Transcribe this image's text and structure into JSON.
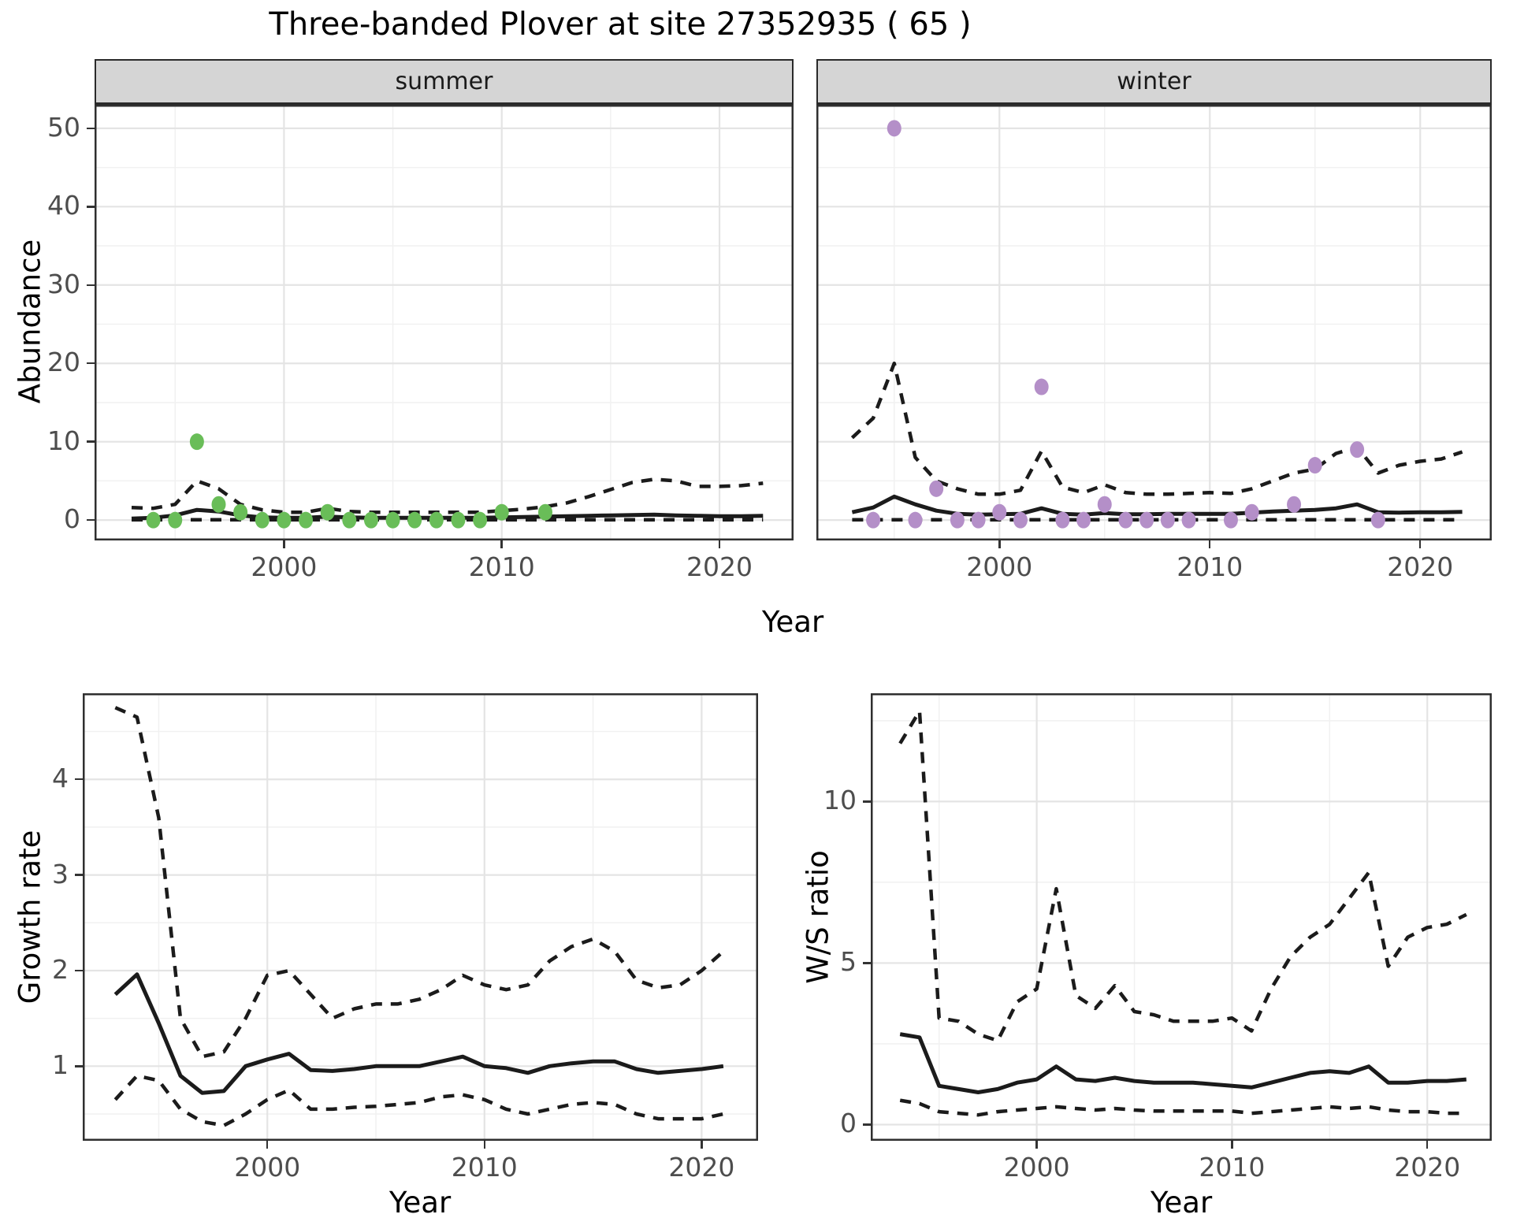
{
  "title": "Three-banded Plover at site 27352935 ( 65 )",
  "axes": {
    "top_y_label": "Abundance",
    "top_x_label": "Year",
    "bottom_left_y_label": "Growth rate",
    "bottom_right_y_label": "W/S ratio",
    "bottom_left_x_label": "Year",
    "bottom_right_x_label": "Year"
  },
  "facets": [
    {
      "label": "summer"
    },
    {
      "label": "winter"
    }
  ],
  "colors": {
    "summer_point": "#69BD58",
    "winter_point": "#B48FC8",
    "line": "#1B1B1B",
    "strip_bg": "#D5D5D5",
    "grid_major": "#E4E4E4",
    "grid_minor": "#F1F1F1",
    "panel_border": "#2F2F2F",
    "tick_text": "#4D4D4D"
  },
  "chart_data": [
    {
      "id": "abundance-summer",
      "type": "line",
      "facet": "summer",
      "title": "",
      "xlabel": "Year",
      "ylabel": "Abundance",
      "x_range": [
        1991.3,
        2023.4
      ],
      "y_range": [
        -2.6,
        53
      ],
      "x_ticks": [
        2000,
        2010,
        2020
      ],
      "x_tick_labels": [
        "2000",
        "2010",
        "2020"
      ],
      "x_minor": [
        1995,
        2005,
        2015
      ],
      "y_ticks": [
        0,
        10,
        20,
        30,
        40,
        50
      ],
      "y_tick_labels": [
        "0",
        "10",
        "20",
        "30",
        "40",
        "50"
      ],
      "y_minor": [
        5,
        15,
        25,
        35,
        45
      ],
      "show_y_tick_labels": true,
      "series": [
        {
          "name": "lower-ci",
          "style": "dashed",
          "x": [
            1993,
            1994,
            1995,
            1996,
            1997,
            1998,
            1999,
            2000,
            2001,
            2002,
            2003,
            2004,
            2005,
            2006,
            2007,
            2008,
            2009,
            2010,
            2011,
            2012,
            2013,
            2014,
            2015,
            2016,
            2017,
            2018,
            2019,
            2020,
            2021,
            2022
          ],
          "y": [
            0.03,
            0.03,
            0.03,
            0.03,
            0.03,
            0.03,
            0.03,
            0.03,
            0.03,
            0.03,
            0.03,
            0.03,
            0.03,
            0.03,
            0.03,
            0.03,
            0.03,
            0.03,
            0.03,
            0.03,
            0.03,
            0.03,
            0.03,
            0.03,
            0.03,
            0.03,
            0.03,
            0.03,
            0.03,
            0.03
          ]
        },
        {
          "name": "upper-ci",
          "style": "dashed",
          "x": [
            1993,
            1994,
            1995,
            1996,
            1997,
            1998,
            1999,
            2000,
            2001,
            2002,
            2003,
            2004,
            2005,
            2006,
            2007,
            2008,
            2009,
            2010,
            2011,
            2012,
            2013,
            2014,
            2015,
            2016,
            2017,
            2018,
            2019,
            2020,
            2021,
            2022
          ],
          "y": [
            1.6,
            1.5,
            2.0,
            5.0,
            4.0,
            2.0,
            1.3,
            1.0,
            1.0,
            1.5,
            1.1,
            1.0,
            1.0,
            1.0,
            1.0,
            1.0,
            1.0,
            1.2,
            1.4,
            1.7,
            2.2,
            3.0,
            3.9,
            4.8,
            5.2,
            5.0,
            4.3,
            4.3,
            4.4,
            4.7
          ]
        },
        {
          "name": "median",
          "style": "solid",
          "x": [
            1993,
            1994,
            1995,
            1996,
            1997,
            1998,
            1999,
            2000,
            2001,
            2002,
            2003,
            2004,
            2005,
            2006,
            2007,
            2008,
            2009,
            2010,
            2011,
            2012,
            2013,
            2014,
            2015,
            2016,
            2017,
            2018,
            2019,
            2020,
            2021,
            2022
          ],
          "y": [
            0.2,
            0.3,
            0.6,
            1.3,
            1.1,
            0.6,
            0.35,
            0.3,
            0.3,
            0.45,
            0.35,
            0.3,
            0.3,
            0.3,
            0.3,
            0.3,
            0.3,
            0.35,
            0.4,
            0.45,
            0.5,
            0.55,
            0.6,
            0.65,
            0.7,
            0.6,
            0.55,
            0.5,
            0.5,
            0.55
          ]
        },
        {
          "name": "observations",
          "style": "points",
          "color": "#69BD58",
          "x": [
            1994,
            1995,
            1996,
            1997,
            1998,
            1999,
            2000,
            2001,
            2002,
            2003,
            2004,
            2005,
            2006,
            2007,
            2008,
            2009,
            2010,
            2012
          ],
          "y": [
            0,
            0,
            10,
            2,
            1,
            0,
            0,
            0,
            1,
            0,
            0,
            0,
            0,
            0,
            0,
            0,
            1,
            1
          ]
        }
      ]
    },
    {
      "id": "abundance-winter",
      "type": "line",
      "facet": "winter",
      "title": "",
      "xlabel": "Year",
      "ylabel": "Abundance",
      "x_range": [
        1991.3,
        2023.4
      ],
      "y_range": [
        -2.6,
        53
      ],
      "x_ticks": [
        2000,
        2010,
        2020
      ],
      "x_tick_labels": [
        "2000",
        "2010",
        "2020"
      ],
      "x_minor": [
        1995,
        2005,
        2015
      ],
      "y_ticks": [
        0,
        10,
        20,
        30,
        40,
        50
      ],
      "y_tick_labels": [
        "0",
        "10",
        "20",
        "30",
        "40",
        "50"
      ],
      "y_minor": [
        5,
        15,
        25,
        35,
        45
      ],
      "show_y_tick_labels": false,
      "series": [
        {
          "name": "lower-ci",
          "style": "dashed",
          "x": [
            1993,
            1994,
            1995,
            1996,
            1997,
            1998,
            1999,
            2000,
            2001,
            2002,
            2003,
            2004,
            2005,
            2006,
            2007,
            2008,
            2009,
            2010,
            2011,
            2012,
            2013,
            2014,
            2015,
            2016,
            2017,
            2018,
            2019,
            2020,
            2021,
            2022
          ],
          "y": [
            0.03,
            0.03,
            0.03,
            0.03,
            0.03,
            0.03,
            0.03,
            0.03,
            0.03,
            0.03,
            0.03,
            0.03,
            0.03,
            0.03,
            0.03,
            0.03,
            0.03,
            0.03,
            0.03,
            0.03,
            0.03,
            0.03,
            0.03,
            0.03,
            0.03,
            0.03,
            0.03,
            0.03,
            0.03,
            0.03
          ]
        },
        {
          "name": "upper-ci",
          "style": "dashed",
          "x": [
            1993,
            1994,
            1995,
            1996,
            1997,
            1998,
            1999,
            2000,
            2001,
            2002,
            2003,
            2004,
            2005,
            2006,
            2007,
            2008,
            2009,
            2010,
            2011,
            2012,
            2013,
            2014,
            2015,
            2016,
            2017,
            2018,
            2019,
            2020,
            2021,
            2022
          ],
          "y": [
            10.5,
            13.0,
            20.0,
            8.0,
            5.0,
            4.0,
            3.3,
            3.3,
            3.8,
            8.8,
            4.2,
            3.5,
            4.5,
            3.5,
            3.3,
            3.3,
            3.4,
            3.5,
            3.4,
            4.0,
            5.0,
            6.0,
            6.5,
            8.5,
            9.3,
            6.0,
            7.0,
            7.5,
            7.8,
            8.7
          ]
        },
        {
          "name": "median",
          "style": "solid",
          "x": [
            1993,
            1994,
            1995,
            1996,
            1997,
            1998,
            1999,
            2000,
            2001,
            2002,
            2003,
            2004,
            2005,
            2006,
            2007,
            2008,
            2009,
            2010,
            2011,
            2012,
            2013,
            2014,
            2015,
            2016,
            2017,
            2018,
            2019,
            2020,
            2021,
            2022
          ],
          "y": [
            1.0,
            1.6,
            3.0,
            2.0,
            1.2,
            0.8,
            0.7,
            0.75,
            0.8,
            1.5,
            0.8,
            0.7,
            0.9,
            0.75,
            0.75,
            0.8,
            0.8,
            0.8,
            0.8,
            0.95,
            1.1,
            1.2,
            1.3,
            1.5,
            2.0,
            1.0,
            0.95,
            1.0,
            1.0,
            1.05
          ]
        },
        {
          "name": "observations",
          "style": "points",
          "color": "#B48FC8",
          "x": [
            1994,
            1995,
            1996,
            1997,
            1998,
            1999,
            2000,
            2001,
            2002,
            2003,
            2004,
            2005,
            2006,
            2007,
            2008,
            2009,
            2011,
            2012,
            2014,
            2015,
            2017,
            2018
          ],
          "y": [
            0,
            50,
            0,
            4,
            0,
            0,
            1,
            0,
            17,
            0,
            0,
            2,
            0,
            0,
            0,
            0,
            0,
            1,
            2,
            7,
            9,
            0
          ]
        }
      ]
    },
    {
      "id": "growth-rate",
      "type": "line",
      "facet": null,
      "title": "",
      "xlabel": "Year",
      "ylabel": "Growth rate",
      "x_range": [
        1991.5,
        2022.6
      ],
      "y_range": [
        0.22,
        4.9
      ],
      "x_ticks": [
        2000,
        2010,
        2020
      ],
      "x_tick_labels": [
        "2000",
        "2010",
        "2020"
      ],
      "x_minor": [
        1995,
        2005,
        2015
      ],
      "y_ticks": [
        1,
        2,
        3,
        4
      ],
      "y_tick_labels": [
        "1",
        "2",
        "3",
        "4"
      ],
      "y_minor": [
        0.5,
        1.5,
        2.5,
        3.5,
        4.5
      ],
      "show_y_tick_labels": true,
      "series": [
        {
          "name": "lower-ci",
          "style": "dashed",
          "x": [
            1993,
            1994,
            1995,
            1996,
            1997,
            1998,
            1999,
            2000,
            2001,
            2002,
            2003,
            2004,
            2005,
            2006,
            2007,
            2008,
            2009,
            2010,
            2011,
            2012,
            2013,
            2014,
            2015,
            2016,
            2017,
            2018,
            2019,
            2020,
            2021
          ],
          "y": [
            0.65,
            0.9,
            0.85,
            0.55,
            0.42,
            0.38,
            0.5,
            0.65,
            0.75,
            0.55,
            0.55,
            0.57,
            0.58,
            0.6,
            0.62,
            0.68,
            0.7,
            0.65,
            0.55,
            0.5,
            0.55,
            0.6,
            0.62,
            0.6,
            0.5,
            0.45,
            0.45,
            0.45,
            0.5
          ]
        },
        {
          "name": "upper-ci",
          "style": "dashed",
          "x": [
            1993,
            1994,
            1995,
            1996,
            1997,
            1998,
            1999,
            2000,
            2001,
            2002,
            2003,
            2004,
            2005,
            2006,
            2007,
            2008,
            2009,
            2010,
            2011,
            2012,
            2013,
            2014,
            2015,
            2016,
            2017,
            2018,
            2019,
            2020,
            2021
          ],
          "y": [
            4.75,
            4.65,
            3.6,
            1.5,
            1.1,
            1.15,
            1.5,
            1.95,
            2.0,
            1.75,
            1.5,
            1.6,
            1.65,
            1.65,
            1.7,
            1.8,
            1.95,
            1.85,
            1.8,
            1.85,
            2.1,
            2.25,
            2.33,
            2.2,
            1.9,
            1.82,
            1.85,
            2.0,
            2.2
          ]
        },
        {
          "name": "median",
          "style": "solid",
          "x": [
            1993,
            1994,
            1995,
            1996,
            1997,
            1998,
            1999,
            2000,
            2001,
            2002,
            2003,
            2004,
            2005,
            2006,
            2007,
            2008,
            2009,
            2010,
            2011,
            2012,
            2013,
            2014,
            2015,
            2016,
            2017,
            2018,
            2019,
            2020,
            2021
          ],
          "y": [
            1.75,
            1.96,
            1.45,
            0.9,
            0.72,
            0.74,
            1.0,
            1.07,
            1.13,
            0.96,
            0.95,
            0.97,
            1.0,
            1.0,
            1.0,
            1.05,
            1.1,
            1.0,
            0.98,
            0.93,
            1.0,
            1.03,
            1.05,
            1.05,
            0.97,
            0.93,
            0.95,
            0.97,
            1.0
          ]
        }
      ]
    },
    {
      "id": "ws-ratio",
      "type": "line",
      "facet": null,
      "title": "",
      "xlabel": "Year",
      "ylabel": "W/S ratio",
      "x_range": [
        1991.5,
        2023.3
      ],
      "y_range": [
        -0.5,
        13.35
      ],
      "x_ticks": [
        2000,
        2010,
        2020
      ],
      "x_tick_labels": [
        "2000",
        "2010",
        "2020"
      ],
      "x_minor": [
        1995,
        2005,
        2015
      ],
      "y_ticks": [
        0,
        5,
        10
      ],
      "y_tick_labels": [
        "0",
        "5",
        "10"
      ],
      "y_minor": [
        2.5,
        7.5,
        12.5
      ],
      "show_y_tick_labels": true,
      "series": [
        {
          "name": "lower-ci",
          "style": "dashed",
          "x": [
            1993,
            1994,
            1995,
            1996,
            1997,
            1998,
            1999,
            2000,
            2001,
            2002,
            2003,
            2004,
            2005,
            2006,
            2007,
            2008,
            2009,
            2010,
            2011,
            2012,
            2013,
            2014,
            2015,
            2016,
            2017,
            2018,
            2019,
            2020,
            2021,
            2022
          ],
          "y": [
            0.75,
            0.65,
            0.4,
            0.35,
            0.3,
            0.4,
            0.45,
            0.5,
            0.55,
            0.5,
            0.45,
            0.5,
            0.45,
            0.42,
            0.42,
            0.42,
            0.42,
            0.42,
            0.35,
            0.4,
            0.45,
            0.5,
            0.55,
            0.5,
            0.55,
            0.45,
            0.4,
            0.4,
            0.35,
            0.35
          ]
        },
        {
          "name": "upper-ci",
          "style": "dashed",
          "x": [
            1993,
            1994,
            1995,
            1996,
            1997,
            1998,
            1999,
            2000,
            2001,
            2002,
            2003,
            2004,
            2005,
            2006,
            2007,
            2008,
            2009,
            2010,
            2011,
            2012,
            2013,
            2014,
            2015,
            2016,
            2017,
            2018,
            2019,
            2020,
            2021,
            2022
          ],
          "y": [
            11.8,
            12.8,
            3.3,
            3.2,
            2.8,
            2.6,
            3.8,
            4.2,
            7.3,
            4.0,
            3.6,
            4.3,
            3.5,
            3.4,
            3.2,
            3.2,
            3.2,
            3.3,
            2.9,
            4.2,
            5.2,
            5.8,
            6.2,
            7.0,
            7.8,
            4.9,
            5.8,
            6.1,
            6.2,
            6.5
          ]
        },
        {
          "name": "median",
          "style": "solid",
          "x": [
            1993,
            1994,
            1995,
            1996,
            1997,
            1998,
            1999,
            2000,
            2001,
            2002,
            2003,
            2004,
            2005,
            2006,
            2007,
            2008,
            2009,
            2010,
            2011,
            2012,
            2013,
            2014,
            2015,
            2016,
            2017,
            2018,
            2019,
            2020,
            2021,
            2022
          ],
          "y": [
            2.8,
            2.7,
            1.2,
            1.1,
            1.0,
            1.1,
            1.3,
            1.4,
            1.8,
            1.4,
            1.35,
            1.45,
            1.35,
            1.3,
            1.3,
            1.3,
            1.25,
            1.2,
            1.15,
            1.3,
            1.45,
            1.6,
            1.65,
            1.6,
            1.8,
            1.3,
            1.3,
            1.35,
            1.35,
            1.4
          ]
        }
      ]
    }
  ]
}
